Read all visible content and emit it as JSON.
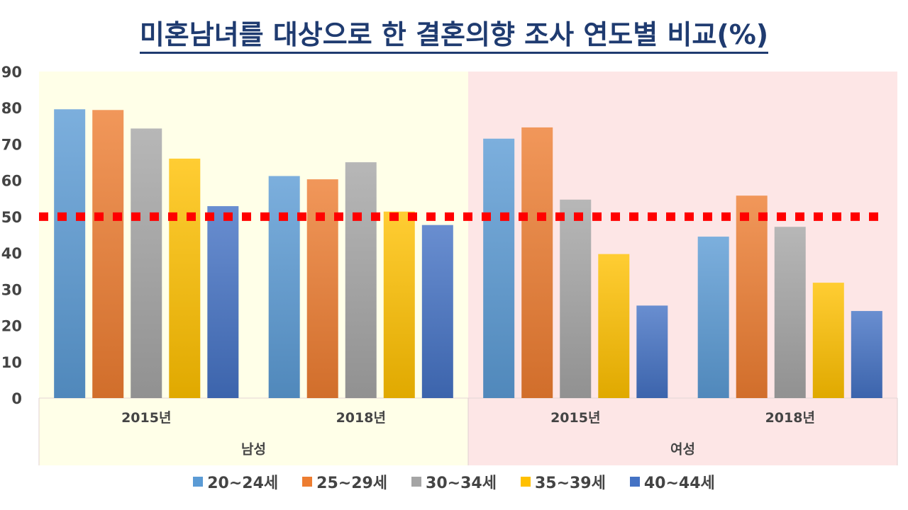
{
  "title": "미혼남녀를 대상으로 한 결혼의향 조사 연도별 비교(%)",
  "chart_data": {
    "type": "bar",
    "title": "미혼남녀를 대상으로 한 결혼의향 조사 연도별 비교(%)",
    "ylim": [
      0,
      90
    ],
    "yticks": [
      0,
      10,
      20,
      30,
      40,
      50,
      60,
      70,
      80,
      90
    ],
    "groups": [
      {
        "label": "남성",
        "background": "#ffffe8",
        "categories": [
          "2015년",
          "2018년"
        ]
      },
      {
        "label": "여성",
        "background": "#fde6e6",
        "categories": [
          "2015년",
          "2018년"
        ]
      }
    ],
    "series": [
      {
        "name": "20~24세",
        "color": "#5b9bd5",
        "values": [
          79.6,
          61.2,
          71.5,
          44.5
        ]
      },
      {
        "name": "25~29세",
        "color": "#ed7d31",
        "values": [
          79.4,
          60.3,
          74.6,
          55.8
        ]
      },
      {
        "name": "30~34세",
        "color": "#a5a5a5",
        "values": [
          74.3,
          65.0,
          54.7,
          47.2
        ]
      },
      {
        "name": "35~39세",
        "color": "#ffc000",
        "values": [
          66.0,
          51.4,
          39.7,
          31.8
        ]
      },
      {
        "name": "40~44세",
        "color": "#4472c4",
        "values": [
          52.9,
          47.7,
          25.5,
          24.0
        ]
      }
    ],
    "reference_line": {
      "value": 50,
      "color": "#ff0000",
      "style": "dotted"
    },
    "legend_position": "bottom"
  }
}
